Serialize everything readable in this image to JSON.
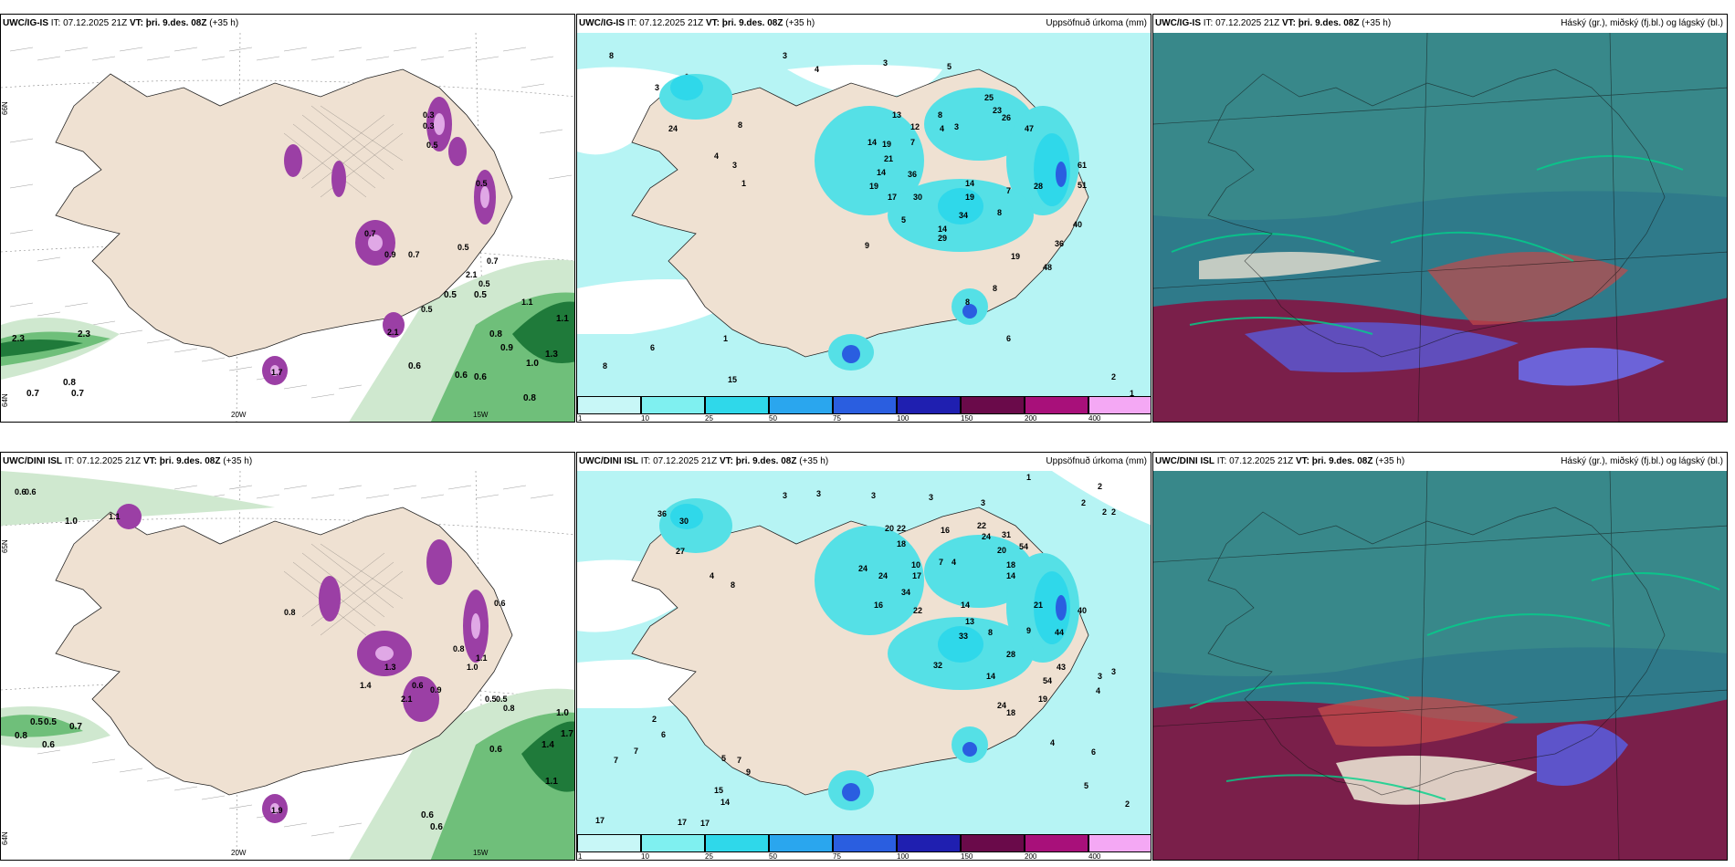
{
  "colors": {
    "land": "#efe1d2",
    "wind_green_dark": "#1f7a3a",
    "wind_green_mid": "#6fbf7a",
    "wind_green_light": "#cfe8cf",
    "ice_purple": "#9b3fa5",
    "ice_light": "#e0a8e6",
    "precip_light": "#b6f4f4",
    "precip_mid": "#55e0e6",
    "cloud_base": "#2f7a8a",
    "cloud_high": "#3c8f8a",
    "cloud_mid": "#7a1f4a",
    "cloud_low": "#5a5ad8"
  },
  "rows": [
    {
      "model": "UWC/IG-IS",
      "it_prefix": "IT: 07.12.2025 21Z",
      "vt_label": "VT:",
      "vt_value": "þri. 9.des. 08Z",
      "lead": "(+35 h)"
    },
    {
      "model": "UWC/DINI ISL",
      "it_prefix": "IT: 07.12.2025 21Z",
      "vt_label": "VT:",
      "vt_value": "þri. 9.des. 08Z",
      "lead": "(+35 h)"
    }
  ],
  "titles": {
    "precip": "Uppsöfnuð úrkoma (mm)",
    "clouds": "Háský (gr.), miðský (fj.bl.) og lágský (bl.)"
  },
  "axes": {
    "lat66": "66N",
    "lat64": "64N",
    "lat65": "65N",
    "lon20": "20W",
    "lon15": "15W"
  },
  "legend": {
    "ticks": [
      "1",
      "10",
      "25",
      "50",
      "75",
      "100",
      "150",
      "200",
      "400"
    ],
    "colors": [
      "#c8f7f7",
      "#7ff0f0",
      "#2fd8ea",
      "#2aa6ee",
      "#2a5ee0",
      "#1f1fb0",
      "#6a0a4a",
      "#a8107a",
      "#ee10b8",
      "#f4a8f4"
    ]
  },
  "ice_labels_top": [
    "0.3",
    "0.3",
    "0.5",
    "0.5",
    "0.7",
    "0.9",
    "0.7",
    "0.5",
    "0.5",
    "0.5",
    "0.7",
    "2.1",
    "1.7",
    "1.1",
    "2.1"
  ],
  "wind_labels_top": [
    "2.3",
    "2.3",
    "0.8",
    "0.7",
    "0.7",
    "0.6",
    "0.9",
    "1.0",
    "0.8",
    "1.1",
    "1.3",
    "0.6",
    "0.6",
    "0.8",
    "0.5",
    "0.5"
  ],
  "precip_labels_top": [
    "8",
    "3",
    "4",
    "3",
    "5",
    "25",
    "23",
    "26",
    "47",
    "3",
    "24",
    "8",
    "4",
    "3",
    "1",
    "13",
    "12",
    "7",
    "8",
    "4",
    "3",
    "14",
    "19",
    "21",
    "14",
    "19",
    "17",
    "30",
    "36",
    "14",
    "19",
    "7",
    "8",
    "34",
    "14",
    "29",
    "19",
    "36",
    "48",
    "28",
    "61",
    "51",
    "40",
    "8",
    "6",
    "8",
    "5",
    "9",
    "15",
    "1",
    "6",
    "2",
    "2",
    "1",
    "8"
  ],
  "ice_labels_bottom": [
    "0.6",
    "0.6",
    "1.0",
    "1.1",
    "0.6",
    "0.8",
    "0.8",
    "1.0",
    "1.4",
    "0.6",
    "0.9",
    "1.1",
    "2.1",
    "1.3",
    "0.5",
    "0.5",
    "0.8",
    "1.9"
  ],
  "wind_labels_bottom": [
    "0.5",
    "0.5",
    "0.7",
    "0.8",
    "0.6",
    "0.6",
    "1.0",
    "1.7",
    "1.4",
    "1.1",
    "0.6",
    "0.6"
  ],
  "precip_labels_bottom": [
    "3",
    "3",
    "3",
    "3",
    "3",
    "1",
    "2",
    "2",
    "2",
    "2",
    "36",
    "30",
    "27",
    "4",
    "8",
    "24",
    "24",
    "20",
    "22",
    "18",
    "16",
    "7",
    "4",
    "22",
    "24",
    "31",
    "20",
    "54",
    "18",
    "14",
    "10",
    "17",
    "34",
    "22",
    "16",
    "14",
    "13",
    "21",
    "40",
    "33",
    "8",
    "9",
    "44",
    "32",
    "28",
    "43",
    "54",
    "14",
    "19",
    "24",
    "18",
    "2",
    "7",
    "7",
    "6",
    "5",
    "7",
    "9",
    "15",
    "14",
    "17",
    "17",
    "17",
    "4",
    "5",
    "2",
    "6",
    "4",
    "3",
    "3"
  ]
}
